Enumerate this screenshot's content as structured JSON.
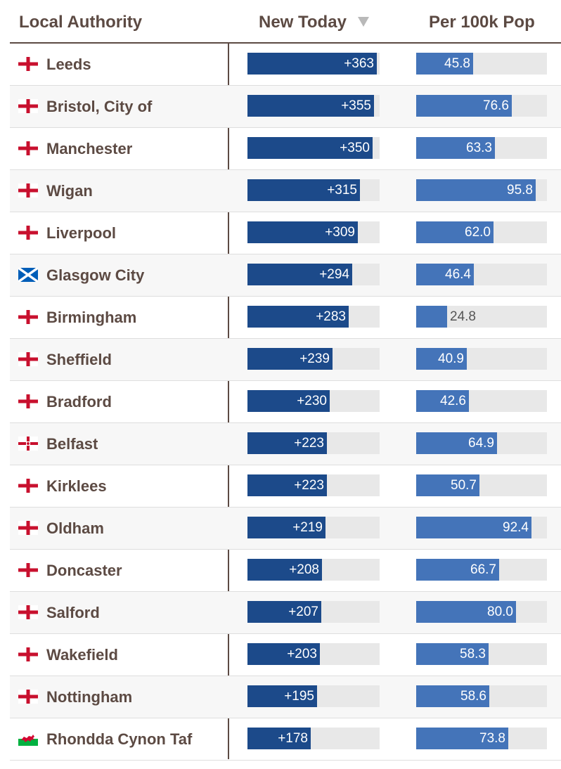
{
  "chart_data": {
    "type": "table",
    "columns": {
      "authority": "Local Authority",
      "new_today": "New Today",
      "per_100k": "Per 100k Pop"
    },
    "sort": {
      "column": "new_today",
      "direction": "descending",
      "icon": "sort-desc-icon"
    },
    "scales": {
      "new_today_max": 370,
      "per_100k_max": 105
    },
    "colors": {
      "new_today_bar": "#1c4a8a",
      "per_100k_bar": "#4474b9",
      "track": "#e8e8e8",
      "text": "#5c4a43"
    },
    "rows": [
      {
        "name": "Leeds",
        "flag": "england-flag-icon",
        "new_today": 363,
        "new_today_label": "+363",
        "per_100k": 45.8,
        "per_100k_label": "45.8"
      },
      {
        "name": "Bristol, City of",
        "flag": "england-flag-icon",
        "new_today": 355,
        "new_today_label": "+355",
        "per_100k": 76.6,
        "per_100k_label": "76.6"
      },
      {
        "name": "Manchester",
        "flag": "england-flag-icon",
        "new_today": 350,
        "new_today_label": "+350",
        "per_100k": 63.3,
        "per_100k_label": "63.3"
      },
      {
        "name": "Wigan",
        "flag": "england-flag-icon",
        "new_today": 315,
        "new_today_label": "+315",
        "per_100k": 95.8,
        "per_100k_label": "95.8"
      },
      {
        "name": "Liverpool",
        "flag": "england-flag-icon",
        "new_today": 309,
        "new_today_label": "+309",
        "per_100k": 62.0,
        "per_100k_label": "62.0"
      },
      {
        "name": "Glasgow City",
        "flag": "scotland-flag-icon",
        "new_today": 294,
        "new_today_label": "+294",
        "per_100k": 46.4,
        "per_100k_label": "46.4"
      },
      {
        "name": "Birmingham",
        "flag": "england-flag-icon",
        "new_today": 283,
        "new_today_label": "+283",
        "per_100k": 24.8,
        "per_100k_label": "24.8"
      },
      {
        "name": "Sheffield",
        "flag": "england-flag-icon",
        "new_today": 239,
        "new_today_label": "+239",
        "per_100k": 40.9,
        "per_100k_label": "40.9"
      },
      {
        "name": "Bradford",
        "flag": "england-flag-icon",
        "new_today": 230,
        "new_today_label": "+230",
        "per_100k": 42.6,
        "per_100k_label": "42.6"
      },
      {
        "name": "Belfast",
        "flag": "northern-ireland-flag-icon",
        "new_today": 223,
        "new_today_label": "+223",
        "per_100k": 64.9,
        "per_100k_label": "64.9"
      },
      {
        "name": "Kirklees",
        "flag": "england-flag-icon",
        "new_today": 223,
        "new_today_label": "+223",
        "per_100k": 50.7,
        "per_100k_label": "50.7"
      },
      {
        "name": "Oldham",
        "flag": "england-flag-icon",
        "new_today": 219,
        "new_today_label": "+219",
        "per_100k": 92.4,
        "per_100k_label": "92.4"
      },
      {
        "name": "Doncaster",
        "flag": "england-flag-icon",
        "new_today": 208,
        "new_today_label": "+208",
        "per_100k": 66.7,
        "per_100k_label": "66.7"
      },
      {
        "name": "Salford",
        "flag": "england-flag-icon",
        "new_today": 207,
        "new_today_label": "+207",
        "per_100k": 80.0,
        "per_100k_label": "80.0"
      },
      {
        "name": "Wakefield",
        "flag": "england-flag-icon",
        "new_today": 203,
        "new_today_label": "+203",
        "per_100k": 58.3,
        "per_100k_label": "58.3"
      },
      {
        "name": "Nottingham",
        "flag": "england-flag-icon",
        "new_today": 195,
        "new_today_label": "+195",
        "per_100k": 58.6,
        "per_100k_label": "58.6"
      },
      {
        "name": "Rhondda Cynon Taf",
        "flag": "wales-flag-icon",
        "new_today": 178,
        "new_today_label": "+178",
        "per_100k": 73.8,
        "per_100k_label": "73.8"
      }
    ]
  }
}
